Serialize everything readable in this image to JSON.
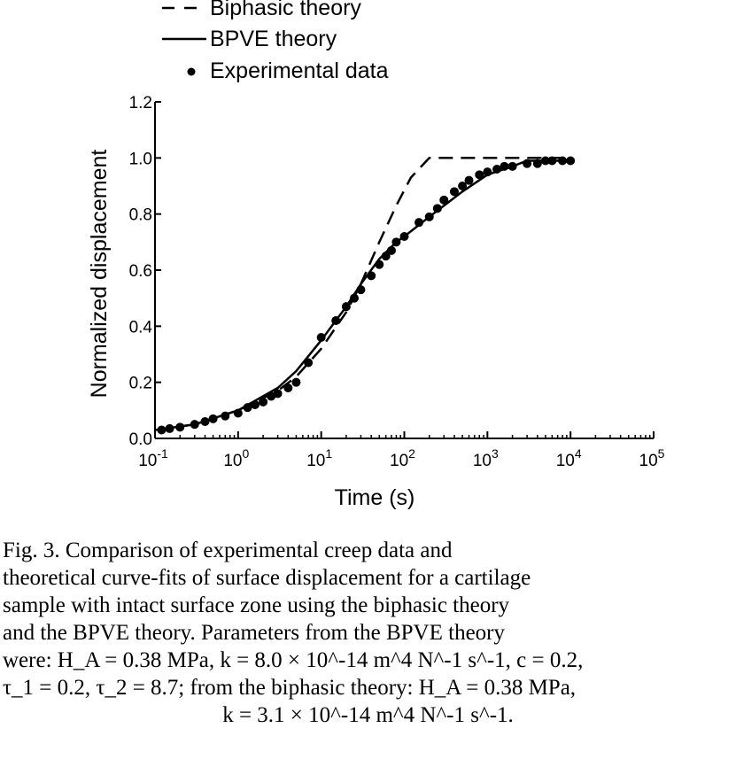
{
  "chart_data": {
    "type": "line",
    "title": "",
    "xlabel": "Time (s)",
    "ylabel": "Normalized displacement",
    "x_scale": "log",
    "xlim": [
      0.1,
      100000
    ],
    "ylim": [
      0,
      1.2
    ],
    "x_ticks": [
      0.1,
      1,
      10,
      100,
      1000,
      10000,
      100000
    ],
    "x_tick_labels": [
      {
        "base": "10",
        "exp": "-1"
      },
      {
        "base": "10",
        "exp": "0"
      },
      {
        "base": "10",
        "exp": "1"
      },
      {
        "base": "10",
        "exp": "2"
      },
      {
        "base": "10",
        "exp": "3"
      },
      {
        "base": "10",
        "exp": "4"
      },
      {
        "base": "10",
        "exp": "5"
      }
    ],
    "y_ticks": [
      0,
      0.2,
      0.4,
      0.6,
      0.8,
      1.0,
      1.2
    ],
    "y_tick_labels": [
      "0.0",
      "0.2",
      "0.4",
      "0.6",
      "0.8",
      "1.0",
      "1.2"
    ],
    "grid": false,
    "legend_position": "top",
    "series": [
      {
        "name": "Biphasic theory",
        "style": "dashed",
        "x": [
          0.1,
          0.3,
          1,
          3,
          5,
          10,
          20,
          30,
          50,
          80,
          120,
          200,
          300,
          1000,
          10000
        ],
        "y": [
          0.03,
          0.05,
          0.1,
          0.17,
          0.22,
          0.32,
          0.45,
          0.55,
          0.7,
          0.83,
          0.93,
          1.0,
          1.0,
          1.0,
          1.0
        ]
      },
      {
        "name": "BPVE theory",
        "style": "solid",
        "x": [
          0.1,
          0.3,
          1,
          3,
          5,
          10,
          20,
          30,
          50,
          80,
          100,
          200,
          500,
          1000,
          2000,
          3000,
          5000,
          10000
        ],
        "y": [
          0.03,
          0.05,
          0.1,
          0.18,
          0.24,
          0.35,
          0.47,
          0.55,
          0.64,
          0.7,
          0.72,
          0.79,
          0.88,
          0.94,
          0.97,
          0.99,
          0.99,
          0.99
        ]
      },
      {
        "name": "Experimental data",
        "style": "markers",
        "x": [
          0.12,
          0.15,
          0.2,
          0.3,
          0.4,
          0.5,
          0.7,
          1,
          1.3,
          1.6,
          2,
          2.5,
          3,
          4,
          5,
          7,
          10,
          15,
          20,
          25,
          30,
          40,
          50,
          60,
          70,
          80,
          100,
          150,
          200,
          250,
          300,
          400,
          500,
          600,
          800,
          1000,
          1300,
          1600,
          2000,
          3000,
          4000,
          5000,
          6000,
          8000,
          10000
        ],
        "y": [
          0.03,
          0.035,
          0.04,
          0.05,
          0.06,
          0.07,
          0.08,
          0.09,
          0.11,
          0.12,
          0.13,
          0.15,
          0.16,
          0.18,
          0.2,
          0.27,
          0.36,
          0.42,
          0.47,
          0.5,
          0.53,
          0.58,
          0.62,
          0.65,
          0.67,
          0.7,
          0.72,
          0.77,
          0.79,
          0.82,
          0.85,
          0.88,
          0.9,
          0.92,
          0.94,
          0.95,
          0.96,
          0.97,
          0.97,
          0.98,
          0.98,
          0.99,
          0.99,
          0.99,
          0.99
        ]
      }
    ]
  },
  "caption": {
    "line1": "Fig. 3. Comparison of experimental creep data and",
    "line2": "theoretical curve-fits of surface displacement for a cartilage",
    "line3": "sample with intact surface zone using the biphasic theory",
    "line4": "and the BPVE theory. Parameters from the BPVE theory",
    "line5": "were: H_A = 0.38 MPa, k = 8.0 × 10^-14 m^4 N^-1 s^-1, c = 0.2,",
    "line6": "τ_1 = 0.2, τ_2 = 8.7; from the biphasic theory: H_A = 0.38 MPa,",
    "line7": "k = 3.1 × 10^-14 m^4 N^-1 s^-1."
  }
}
